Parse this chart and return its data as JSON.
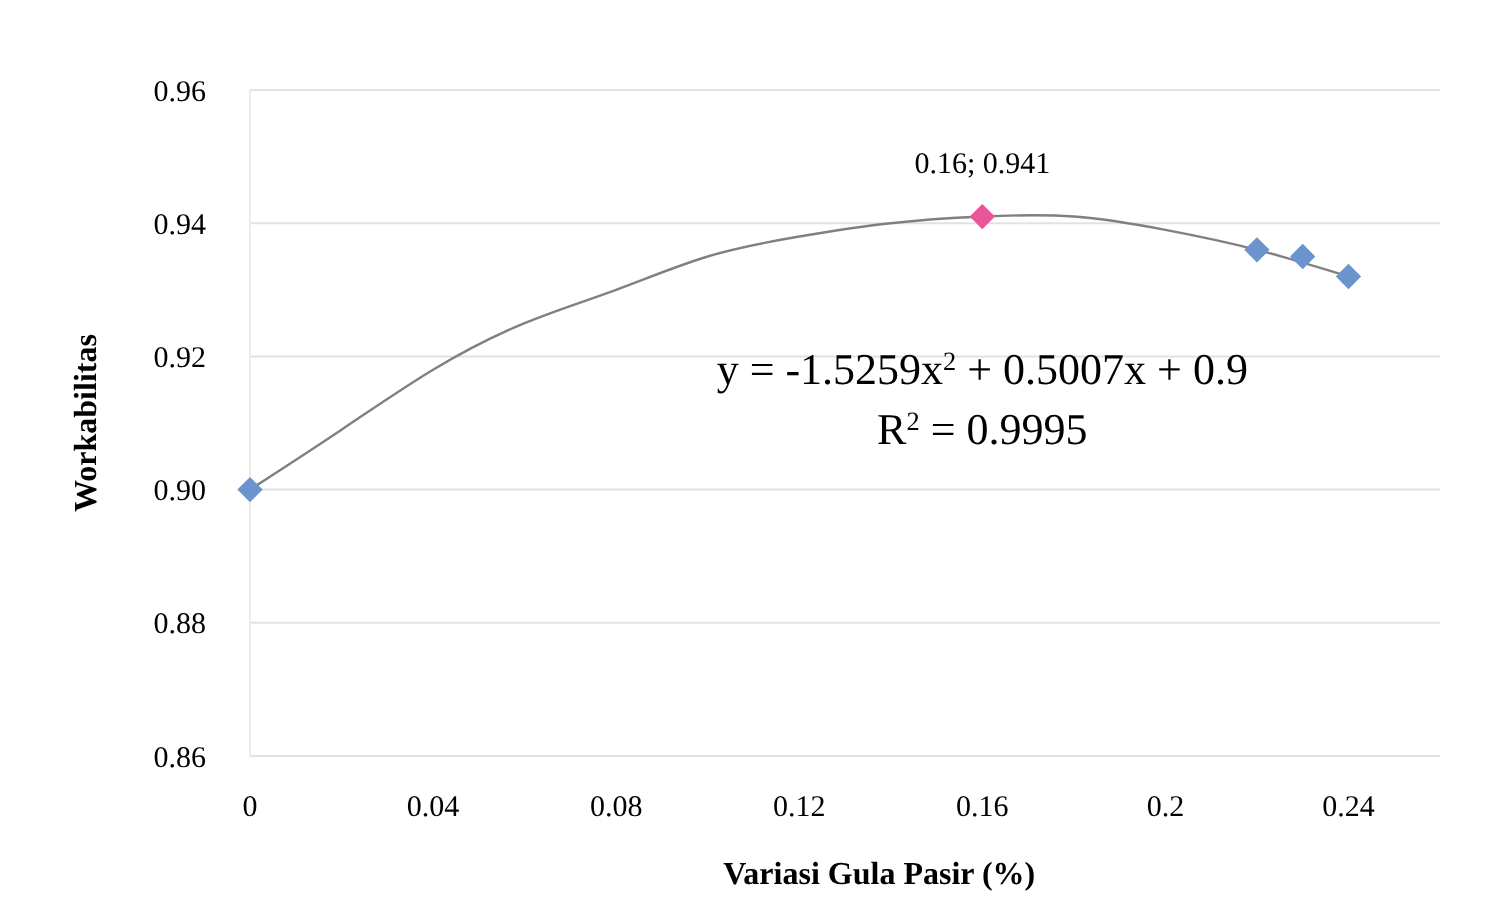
{
  "chart_data": {
    "type": "scatter",
    "xlabel": "Variasi Gula Pasir (%)",
    "ylabel": "Workabilitas",
    "xlim": [
      0,
      0.26
    ],
    "xticks": [
      0,
      0.04,
      0.08,
      0.12,
      0.16,
      {
        "value": 0.2,
        "label": "0.2"
      },
      0.24
    ],
    "ylim": [
      0.86,
      0.96
    ],
    "yticks": [
      {
        "value": 0.86,
        "label": "0.86"
      },
      {
        "value": 0.88,
        "label": "0.88"
      },
      {
        "value": 0.9,
        "label": "0.90"
      },
      {
        "value": 0.92,
        "label": "0.92"
      },
      {
        "value": 0.94,
        "label": "0.94"
      },
      {
        "value": 0.96,
        "label": "0.96"
      }
    ],
    "grid": "y",
    "series": [
      {
        "type": "line",
        "color": "#808080",
        "marker": "none",
        "line_style": "solid",
        "x": [
          0,
          0.02,
          0.04,
          0.06,
          0.08,
          0.1,
          0.12,
          0.14,
          0.16,
          0.18,
          0.2,
          0.22,
          0.24
        ],
        "values": [
          0.9,
          0.909,
          0.918,
          0.925,
          0.93,
          0.935,
          0.938,
          0.94,
          0.941,
          0.941,
          0.939,
          0.936,
          0.932
        ]
      },
      {
        "marker": "diamond",
        "x": [
          0,
          0.16,
          0.22,
          0.23,
          0.24
        ],
        "values": [
          0.9,
          0.941,
          0.936,
          0.935,
          0.932
        ],
        "colors": [
          "#6b93cc",
          "#e8559a",
          "#6b93cc",
          "#6b93cc",
          "#6b93cc"
        ]
      }
    ],
    "annotations": [
      {
        "text": "0.16; 0.941",
        "x": 0.16,
        "y": 0.941
      },
      "y = -1.5259x$^{2}$ + 0.5007x + 0.9",
      "R$^{2}$ = 0.9995"
    ]
  }
}
